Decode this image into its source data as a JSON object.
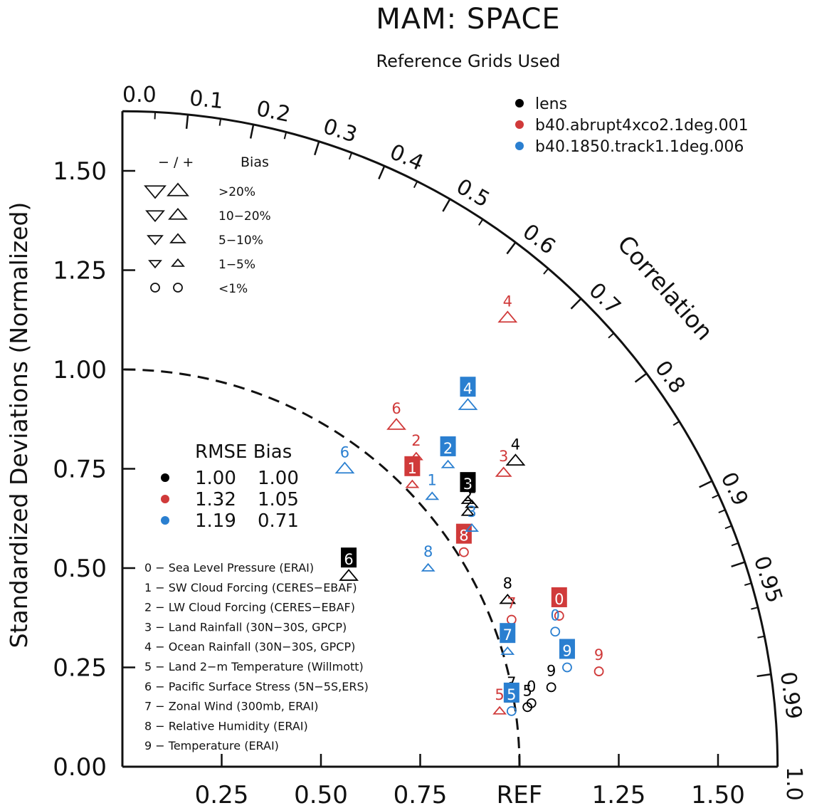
{
  "colors": {
    "lens": "#000000",
    "abrupt": "#d03a3a",
    "track": "#2a7fd0",
    "ink": "#111111"
  },
  "chart_data": {
    "type": "taylor",
    "title": "MAM: SPACE",
    "subtitle": "Reference Grids Used",
    "ylabel": "Standardized Deviations (Normalized)",
    "correlation_label": "Correlation",
    "ref_label": "REF",
    "std_range": [
      0,
      1.65
    ],
    "y_ticks": [
      "0.00",
      "0.25",
      "0.50",
      "0.75",
      "1.00",
      "1.25",
      "1.50"
    ],
    "x_ticks": [
      "0.25",
      "0.50",
      "0.75",
      "REF",
      "1.25",
      "1.50"
    ],
    "corr_labels": [
      "0.0",
      "0.1",
      "0.2",
      "0.3",
      "0.4",
      "0.5",
      "0.6",
      "0.7",
      "0.8",
      "0.9",
      "0.95",
      "0.99",
      "1.0"
    ],
    "legend": [
      {
        "key": "lens",
        "label": "lens"
      },
      {
        "key": "abrupt",
        "label": "b40.abrupt4xco2.1deg.001"
      },
      {
        "key": "track",
        "label": "b40.1850.track1.1deg.006"
      }
    ],
    "bias_legend": {
      "header_signs": "−  /  +",
      "header_label": "Bias",
      "rows": [
        {
          "label": ">20%",
          "size": 4
        },
        {
          "label": "10−20%",
          "size": 3
        },
        {
          "label": "5−10%",
          "size": 2
        },
        {
          "label": "1−5%",
          "size": 1
        },
        {
          "label": "<1%",
          "size": 0
        }
      ]
    },
    "rmse_table": {
      "header": "RMSE Bias",
      "rows": [
        {
          "key": "lens",
          "rmse": "1.00",
          "bias": "1.00"
        },
        {
          "key": "abrupt",
          "rmse": "1.32",
          "bias": "1.05"
        },
        {
          "key": "track",
          "rmse": "1.19",
          "bias": "0.71"
        }
      ]
    },
    "variables": [
      "0 − Sea Level Pressure (ERAI)",
      "1 − SW Cloud Forcing (CERES−EBAF)",
      "2 − LW Cloud Forcing (CERES−EBAF)",
      "3 − Land Rainfall (30N−30S, GPCP)",
      "4 − Ocean Rainfall (30N−30S, GPCP)",
      "5 − Land 2−m Temperature (Willmott)",
      "6 − Pacific Surface Stress (5N−5S,ERS)",
      "7 − Zonal Wind (300mb, ERAI)",
      "8 − Relative Humidity (ERAI)",
      "9 − Temperature (ERAI)"
    ],
    "points": [
      {
        "case": "lens",
        "var": "0",
        "x": 1.03,
        "y": 0.16,
        "marker": "circle",
        "size": 0,
        "boxed": false
      },
      {
        "case": "lens",
        "var": "3",
        "x": 0.87,
        "y": 0.67,
        "marker": "up",
        "size": 1,
        "boxed": true
      },
      {
        "case": "lens",
        "var": "4",
        "x": 0.99,
        "y": 0.77,
        "marker": "up",
        "size": 3,
        "boxed": false
      },
      {
        "case": "lens",
        "var": "5",
        "x": 1.02,
        "y": 0.15,
        "marker": "circle",
        "size": 0,
        "boxed": false
      },
      {
        "case": "lens",
        "var": "6",
        "x": 0.57,
        "y": 0.48,
        "marker": "up",
        "size": 3,
        "boxed": true
      },
      {
        "case": "lens",
        "var": "7",
        "x": 0.98,
        "y": 0.17,
        "marker": "up",
        "size": 1,
        "boxed": false
      },
      {
        "case": "lens",
        "var": "8",
        "x": 0.97,
        "y": 0.42,
        "marker": "up",
        "size": 2,
        "boxed": false
      },
      {
        "case": "lens",
        "var": "9",
        "x": 1.08,
        "y": 0.2,
        "marker": "circle",
        "size": 0,
        "boxed": false
      },
      {
        "case": "lens",
        "var": "1",
        "x": 0.88,
        "y": 0.66,
        "marker": "up",
        "size": 1,
        "boxed": false
      },
      {
        "case": "lens",
        "var": "2",
        "x": 0.87,
        "y": 0.64,
        "marker": "up",
        "size": 1,
        "boxed": false
      },
      {
        "case": "abrupt",
        "var": "0",
        "x": 1.1,
        "y": 0.38,
        "marker": "circle",
        "size": 0,
        "boxed": true
      },
      {
        "case": "abrupt",
        "var": "1",
        "x": 0.73,
        "y": 0.71,
        "marker": "up",
        "size": 1,
        "boxed": true
      },
      {
        "case": "abrupt",
        "var": "2",
        "x": 0.74,
        "y": 0.78,
        "marker": "up",
        "size": 1,
        "boxed": false
      },
      {
        "case": "abrupt",
        "var": "3",
        "x": 0.96,
        "y": 0.74,
        "marker": "up",
        "size": 2,
        "boxed": false
      },
      {
        "case": "abrupt",
        "var": "4",
        "x": 0.97,
        "y": 1.13,
        "marker": "up",
        "size": 3,
        "boxed": false
      },
      {
        "case": "abrupt",
        "var": "5",
        "x": 0.95,
        "y": 0.14,
        "marker": "up",
        "size": 1,
        "boxed": false
      },
      {
        "case": "abrupt",
        "var": "6",
        "x": 0.69,
        "y": 0.86,
        "marker": "up",
        "size": 3,
        "boxed": false
      },
      {
        "case": "abrupt",
        "var": "7",
        "x": 0.98,
        "y": 0.37,
        "marker": "circle",
        "size": 0,
        "boxed": false
      },
      {
        "case": "abrupt",
        "var": "8",
        "x": 0.86,
        "y": 0.54,
        "marker": "circle",
        "size": 0,
        "boxed": true
      },
      {
        "case": "abrupt",
        "var": "9",
        "x": 1.2,
        "y": 0.24,
        "marker": "circle",
        "size": 0,
        "boxed": false
      },
      {
        "case": "track",
        "var": "0",
        "x": 1.09,
        "y": 0.34,
        "marker": "circle",
        "size": 0,
        "boxed": false
      },
      {
        "case": "track",
        "var": "1",
        "x": 0.78,
        "y": 0.68,
        "marker": "up",
        "size": 1,
        "boxed": false
      },
      {
        "case": "track",
        "var": "2",
        "x": 0.82,
        "y": 0.76,
        "marker": "up",
        "size": 1,
        "boxed": true
      },
      {
        "case": "track",
        "var": "3",
        "x": 0.88,
        "y": 0.6,
        "marker": "up",
        "size": 1,
        "boxed": false
      },
      {
        "case": "track",
        "var": "4",
        "x": 0.87,
        "y": 0.91,
        "marker": "up",
        "size": 3,
        "boxed": true
      },
      {
        "case": "track",
        "var": "5",
        "x": 0.98,
        "y": 0.14,
        "marker": "circle",
        "size": 0,
        "boxed": true
      },
      {
        "case": "track",
        "var": "6",
        "x": 0.56,
        "y": 0.75,
        "marker": "up",
        "size": 3,
        "boxed": false
      },
      {
        "case": "track",
        "var": "7",
        "x": 0.97,
        "y": 0.29,
        "marker": "up",
        "size": 1,
        "boxed": true
      },
      {
        "case": "track",
        "var": "8",
        "x": 0.77,
        "y": 0.5,
        "marker": "up",
        "size": 1,
        "boxed": false
      },
      {
        "case": "track",
        "var": "9",
        "x": 1.12,
        "y": 0.25,
        "marker": "circle",
        "size": 0,
        "boxed": true
      }
    ]
  }
}
